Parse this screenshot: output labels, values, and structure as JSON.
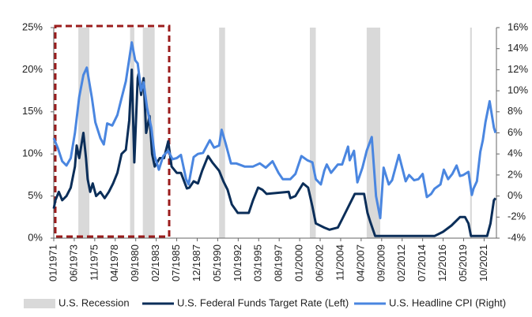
{
  "chart_data": {
    "type": "line",
    "recession_name": "U.S. Recession",
    "recession_color": "#d9d9d9",
    "recessions": [
      [
        1973.9,
        1975.2
      ],
      [
        1980.0,
        1980.5
      ],
      [
        1981.5,
        1982.9
      ],
      [
        1990.5,
        1991.2
      ],
      [
        2001.2,
        2001.9
      ],
      [
        2007.9,
        2009.5
      ],
      [
        2020.1,
        2020.3
      ]
    ],
    "xlim": [
      1971.0,
      2023.2
    ],
    "xticks": [
      {
        "value": 1971.0,
        "label": "01/1971"
      },
      {
        "value": 1973.4167,
        "label": "06/1973"
      },
      {
        "value": 1975.8333,
        "label": "11/1975"
      },
      {
        "value": 1978.25,
        "label": "04/1978"
      },
      {
        "value": 1980.6667,
        "label": "09/1980"
      },
      {
        "value": 1983.0833,
        "label": "02/1983"
      },
      {
        "value": 1985.5,
        "label": "07/1985"
      },
      {
        "value": 1987.9167,
        "label": "12/1987"
      },
      {
        "value": 1990.3333,
        "label": "05/1990"
      },
      {
        "value": 1992.75,
        "label": "10/1992"
      },
      {
        "value": 1995.1667,
        "label": "03/1995"
      },
      {
        "value": 1997.5833,
        "label": "08/1997"
      },
      {
        "value": 2000.0,
        "label": "01/2000"
      },
      {
        "value": 2002.4167,
        "label": "06/2002"
      },
      {
        "value": 2004.8333,
        "label": "11/2004"
      },
      {
        "value": 2007.25,
        "label": "04/2007"
      },
      {
        "value": 2009.6667,
        "label": "09/2009"
      },
      {
        "value": 2012.0833,
        "label": "02/2012"
      },
      {
        "value": 2014.5,
        "label": "07/2014"
      },
      {
        "value": 2016.9167,
        "label": "12/2016"
      },
      {
        "value": 2019.3333,
        "label": "05/2019"
      },
      {
        "value": 2021.75,
        "label": "10/2021"
      }
    ],
    "ylim": [
      0,
      25
    ],
    "yticks": [
      {
        "value": 0,
        "label": "0%"
      },
      {
        "value": 5,
        "label": "5%"
      },
      {
        "value": 10,
        "label": "10%"
      },
      {
        "value": 15,
        "label": "15%"
      },
      {
        "value": 20,
        "label": "20%"
      },
      {
        "value": 25,
        "label": "25%"
      }
    ],
    "y2lim": [
      -4,
      16
    ],
    "y2ticks": [
      {
        "value": -4,
        "label": "-4%"
      },
      {
        "value": -2,
        "label": "-2%"
      },
      {
        "value": 0,
        "label": "0%"
      },
      {
        "value": 2,
        "label": "2%"
      },
      {
        "value": 4,
        "label": "4%"
      },
      {
        "value": 6,
        "label": "6%"
      },
      {
        "value": 8,
        "label": "8%"
      },
      {
        "value": 10,
        "label": "10%"
      },
      {
        "value": 12,
        "label": "12%"
      },
      {
        "value": 14,
        "label": "14%"
      },
      {
        "value": 16,
        "label": "16%"
      }
    ],
    "series": [
      {
        "name": "U.S. Federal Funds Target Rate (Left)",
        "color": "#0b2e59",
        "axis": "y",
        "x": [
          1971.0,
          1971.2,
          1971.6,
          1972.0,
          1972.5,
          1973.0,
          1973.5,
          1973.7,
          1974.0,
          1974.5,
          1974.8,
          1975.0,
          1975.3,
          1975.6,
          1976.0,
          1976.5,
          1977.0,
          1977.5,
          1978.0,
          1978.5,
          1979.0,
          1979.5,
          1979.9,
          1980.2,
          1980.5,
          1980.9,
          1981.0,
          1981.3,
          1981.6,
          1981.9,
          1982.3,
          1982.6,
          1982.9,
          1983.5,
          1984.0,
          1984.5,
          1984.9,
          1985.5,
          1986.0,
          1986.7,
          1987.0,
          1987.5,
          1988.0,
          1988.5,
          1989.2,
          1989.7,
          1990.5,
          1991.0,
          1991.5,
          1992.0,
          1992.7,
          1994.0,
          1994.5,
          1995.1,
          1995.6,
          1996.1,
          1998.7,
          1998.9,
          1999.5,
          2000.4,
          2001.0,
          2001.5,
          2001.9,
          2002.9,
          2003.5,
          2004.5,
          2005.0,
          2006.0,
          2006.5,
          2007.6,
          2008.0,
          2008.3,
          2008.9,
          2015.9,
          2016.9,
          2017.9,
          2018.9,
          2019.5,
          2019.9,
          2020.2,
          2022.1,
          2022.5,
          2022.9,
          2023.1
        ],
        "values": [
          3.5,
          4.5,
          5.5,
          4.5,
          5.0,
          6.0,
          8.5,
          11.0,
          9.5,
          12.5,
          9.5,
          7.0,
          5.5,
          6.5,
          5.0,
          5.5,
          4.75,
          5.5,
          6.5,
          7.75,
          10,
          10.5,
          14,
          20,
          9,
          19,
          19.5,
          17,
          19,
          12.5,
          14.5,
          10,
          8.5,
          9.5,
          9.5,
          11.5,
          8.5,
          7.75,
          7.75,
          5.9,
          6.0,
          6.75,
          6.5,
          8.0,
          9.75,
          9.0,
          8.0,
          6.75,
          5.75,
          4.0,
          3.0,
          3.0,
          4.5,
          6.0,
          5.75,
          5.25,
          5.5,
          4.75,
          5.0,
          6.5,
          6.0,
          3.75,
          1.75,
          1.25,
          1.0,
          1.25,
          2.25,
          4.25,
          5.25,
          5.25,
          3.0,
          2.0,
          0.25,
          0.25,
          0.75,
          1.5,
          2.5,
          2.5,
          1.75,
          0.25,
          0.25,
          1.75,
          4.5,
          4.75
        ]
      },
      {
        "name": "U.S. Headline CPI (Right)",
        "color": "#4a86e0",
        "axis": "y2",
        "x": [
          1971.0,
          1971.5,
          1972.0,
          1972.5,
          1973.0,
          1973.5,
          1974.0,
          1974.5,
          1974.9,
          1975.5,
          1975.9,
          1976.5,
          1976.9,
          1977.3,
          1977.9,
          1978.5,
          1978.9,
          1979.5,
          1980.2,
          1980.6,
          1980.9,
          1981.3,
          1981.6,
          1982.0,
          1982.5,
          1982.9,
          1983.4,
          1983.9,
          1984.5,
          1985.0,
          1985.5,
          1986.0,
          1986.6,
          1986.9,
          1987.5,
          1988.0,
          1988.6,
          1989.4,
          1989.9,
          1990.5,
          1990.8,
          1991.3,
          1991.9,
          1992.5,
          1993.5,
          1994.5,
          1995.3,
          1996.0,
          1996.8,
          1997.5,
          1998.0,
          1998.9,
          1999.5,
          2000.2,
          2000.9,
          2001.5,
          2001.9,
          2002.5,
          2002.9,
          2003.2,
          2003.7,
          2004.5,
          2005.0,
          2005.7,
          2005.9,
          2006.4,
          2006.8,
          2007.4,
          2007.9,
          2008.5,
          2009.0,
          2009.5,
          2009.9,
          2010.5,
          2010.9,
          2011.7,
          2012.5,
          2012.9,
          2013.5,
          2014.0,
          2014.5,
          2015.0,
          2015.5,
          2015.9,
          2016.6,
          2017.0,
          2017.5,
          2018.0,
          2018.5,
          2018.9,
          2019.3,
          2019.9,
          2020.3,
          2020.5,
          2020.9,
          2021.3,
          2021.6,
          2021.9,
          2022.4,
          2022.5,
          2022.9,
          2023.1
        ],
        "values": [
          5.5,
          4.5,
          3.3,
          2.9,
          3.6,
          6.0,
          9.4,
          11.5,
          12.2,
          9.3,
          7.0,
          5.5,
          4.9,
          6.9,
          6.7,
          7.7,
          9.0,
          10.9,
          14.6,
          12.9,
          12.6,
          10.0,
          10.8,
          8.4,
          6.5,
          3.8,
          2.5,
          3.8,
          4.3,
          3.5,
          3.6,
          3.9,
          1.6,
          1.1,
          3.7,
          4.0,
          4.1,
          5.3,
          4.6,
          4.8,
          6.3,
          4.9,
          3.1,
          3.1,
          2.8,
          2.8,
          3.1,
          2.7,
          3.3,
          2.2,
          1.6,
          1.6,
          2.1,
          3.8,
          3.4,
          3.2,
          1.6,
          1.1,
          2.4,
          3.0,
          2.2,
          3.0,
          3.0,
          4.7,
          3.4,
          4.3,
          1.3,
          2.7,
          4.3,
          5.6,
          0.0,
          -2.1,
          2.7,
          1.1,
          1.5,
          3.9,
          1.4,
          2.0,
          1.5,
          1.6,
          2.1,
          -0.1,
          0.2,
          0.7,
          1.1,
          2.5,
          1.6,
          2.1,
          2.9,
          1.9,
          2.0,
          2.3,
          0.1,
          0.7,
          1.4,
          4.2,
          5.3,
          7.0,
          9.0,
          8.5,
          6.5,
          6.0
        ]
      }
    ]
  }
}
